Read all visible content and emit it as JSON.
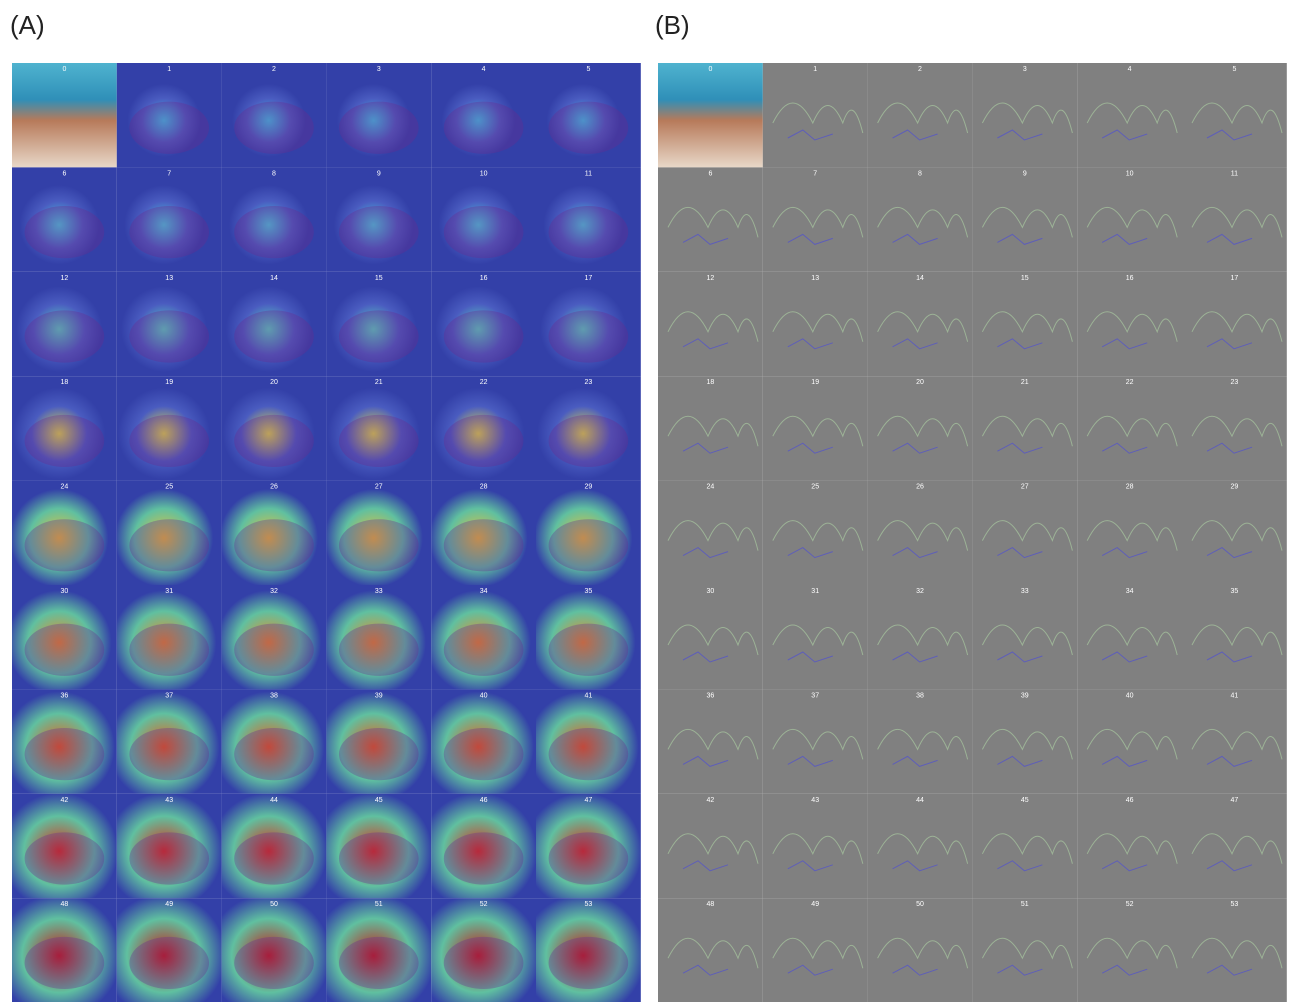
{
  "panels": [
    {
      "label": "(A)",
      "tiles": [
        0,
        1,
        2,
        3,
        4,
        5,
        6,
        7,
        8,
        9,
        10,
        11,
        12,
        13,
        14,
        15,
        16,
        17,
        18,
        19,
        20,
        21,
        22,
        23,
        24,
        25,
        26,
        27,
        28,
        29,
        30,
        31,
        32,
        33,
        34,
        35,
        36,
        37,
        38,
        39,
        40,
        41,
        42,
        43,
        44,
        45,
        46,
        47,
        48,
        49,
        50,
        51,
        52,
        53
      ]
    },
    {
      "label": "(B)",
      "tiles": [
        0,
        1,
        2,
        3,
        4,
        5,
        6,
        7,
        8,
        9,
        10,
        11,
        12,
        13,
        14,
        15,
        16,
        17,
        18,
        19,
        20,
        21,
        22,
        23,
        24,
        25,
        26,
        27,
        28,
        29,
        30,
        31,
        32,
        33,
        34,
        35,
        36,
        37,
        38,
        39,
        40,
        41,
        42,
        43,
        44,
        45,
        46,
        47,
        48,
        49,
        50,
        51,
        52,
        53
      ]
    }
  ]
}
